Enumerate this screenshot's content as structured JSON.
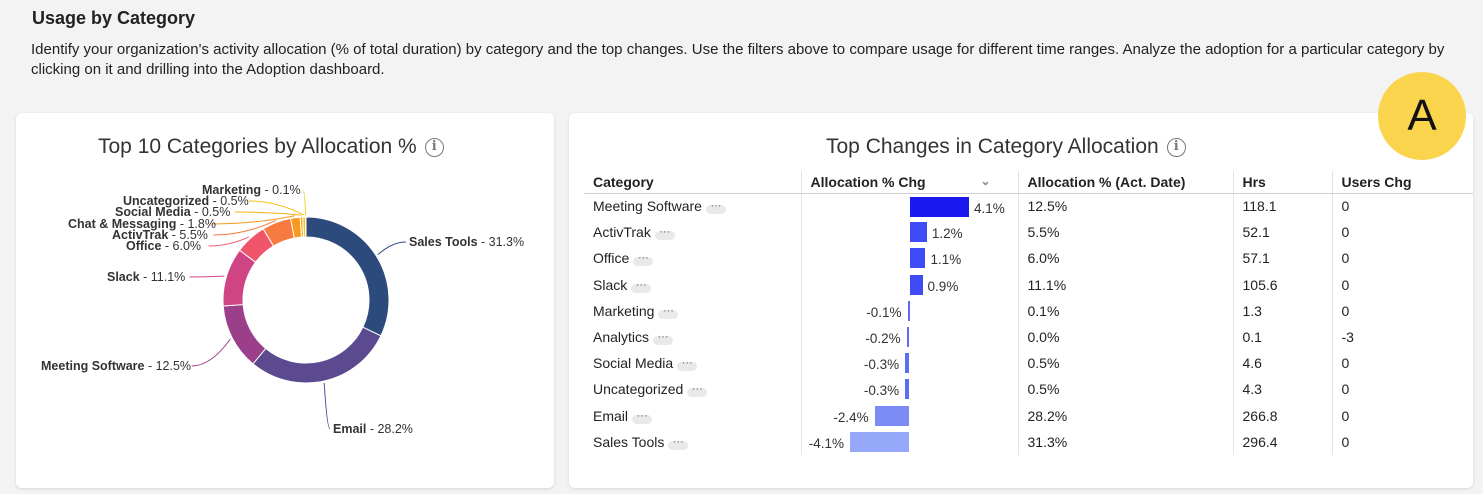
{
  "section": {
    "title": "Usage by Category",
    "description": "Identify your organization's activity allocation (% of total duration) by category and the top changes. Use the filters above to compare usage for different time ranges. Analyze the adoption for a particular category by clicking on it and drilling into the Adoption dashboard."
  },
  "avatar": {
    "initial": "A",
    "color": "#fbd44e"
  },
  "left_card": {
    "title": "Top 10 Categories by Allocation %"
  },
  "right_card": {
    "title": "Top Changes in Category Allocation",
    "columns": [
      "Category",
      "Allocation % Chg",
      "Allocation % (Act. Date)",
      "Hrs",
      "Users Chg"
    ],
    "more_icon": "···",
    "sort_icon": "chevron-down-icon",
    "rows": [
      {
        "category": "Meeting Software",
        "chg": 4.1,
        "chg_label": "4.1%",
        "alloc": "12.5%",
        "hrs": "118.1",
        "users": "0"
      },
      {
        "category": "ActivTrak",
        "chg": 1.2,
        "chg_label": "1.2%",
        "alloc": "5.5%",
        "hrs": "52.1",
        "users": "0"
      },
      {
        "category": "Office",
        "chg": 1.1,
        "chg_label": "1.1%",
        "alloc": "6.0%",
        "hrs": "57.1",
        "users": "0"
      },
      {
        "category": "Slack",
        "chg": 0.9,
        "chg_label": "0.9%",
        "alloc": "11.1%",
        "hrs": "105.6",
        "users": "0"
      },
      {
        "category": "Marketing",
        "chg": -0.1,
        "chg_label": "-0.1%",
        "alloc": "0.1%",
        "hrs": "1.3",
        "users": "0"
      },
      {
        "category": "Analytics",
        "chg": -0.2,
        "chg_label": "-0.2%",
        "alloc": "0.0%",
        "hrs": "0.1",
        "users": "-3"
      },
      {
        "category": "Social Media",
        "chg": -0.3,
        "chg_label": "-0.3%",
        "alloc": "0.5%",
        "hrs": "4.6",
        "users": "0"
      },
      {
        "category": "Uncategorized",
        "chg": -0.3,
        "chg_label": "-0.3%",
        "alloc": "0.5%",
        "hrs": "4.3",
        "users": "0"
      },
      {
        "category": "Email",
        "chg": -2.4,
        "chg_label": "-2.4%",
        "alloc": "28.2%",
        "hrs": "266.8",
        "users": "0"
      },
      {
        "category": "Sales Tools",
        "chg": -4.1,
        "chg_label": "-4.1%",
        "alloc": "31.3%",
        "hrs": "296.4",
        "users": "0"
      }
    ],
    "colors": {
      "pos_dark": "#1a1aef",
      "pos": "#3f4cf5",
      "neg_dark": "#5d6cf5",
      "neg_light": "#94a7f9"
    }
  },
  "chart_data": {
    "type": "pie",
    "title": "Top 10 Categories by Allocation %",
    "slices": [
      {
        "name": "Sales Tools",
        "value": 31.3,
        "label": "Sales Tools - 31.3%",
        "color": "#2c4a7c"
      },
      {
        "name": "Email",
        "value": 28.2,
        "label": "Email - 28.2%",
        "color": "#5b4a8f"
      },
      {
        "name": "Meeting Software",
        "value": 12.5,
        "label": "Meeting Software - 12.5%",
        "color": "#9c3f8b"
      },
      {
        "name": "Slack",
        "value": 11.1,
        "label": "Slack - 11.1%",
        "color": "#cf4584"
      },
      {
        "name": "Office",
        "value": 6.0,
        "label": "Office - 6.0%",
        "color": "#f0566b"
      },
      {
        "name": "ActivTrak",
        "value": 5.5,
        "label": "ActivTrak - 5.5%",
        "color": "#f77a40"
      },
      {
        "name": "Chat & Messaging",
        "value": 1.8,
        "label": "Chat & Messaging - 1.8%",
        "color": "#f89a20"
      },
      {
        "name": "Social Media",
        "value": 0.5,
        "label": "Social Media - 0.5%",
        "color": "#f9b10c"
      },
      {
        "name": "Uncategorized",
        "value": 0.5,
        "label": "Uncategorized - 0.5%",
        "color": "#f4c21a"
      },
      {
        "name": "Marketing",
        "value": 0.1,
        "label": "Marketing - 0.1%",
        "color": "#e8d92a"
      }
    ]
  }
}
